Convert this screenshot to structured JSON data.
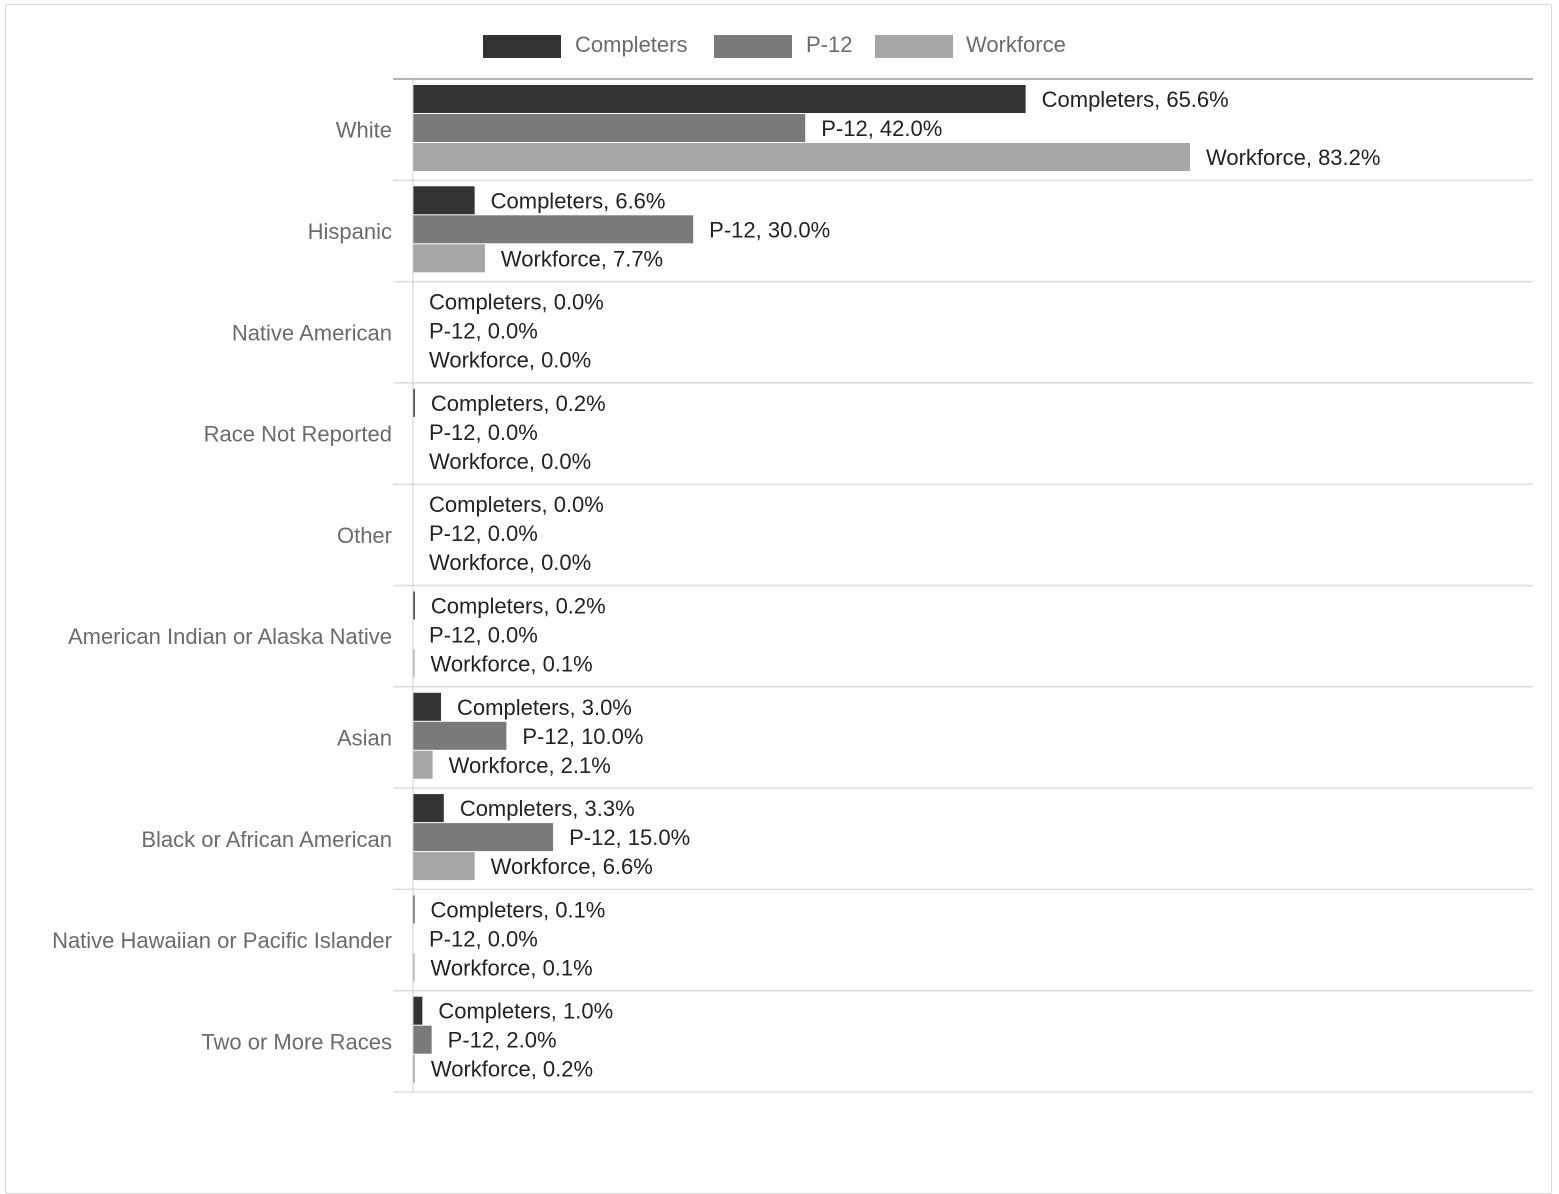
{
  "chart_data": {
    "type": "bar",
    "orientation": "horizontal",
    "categories": [
      "White",
      "Hispanic",
      "Native American",
      "Race Not Reported",
      "Other",
      "American Indian or Alaska Native",
      "Asian",
      "Black or African American",
      "Native Hawaiian or Pacific Islander",
      "Two or More Races"
    ],
    "series": [
      {
        "name": "Completers",
        "color": "#333333",
        "values": [
          65.6,
          6.6,
          0.0,
          0.2,
          0.0,
          0.2,
          3.0,
          3.3,
          0.1,
          1.0
        ],
        "labels": [
          "Completers, 65.6%",
          "Completers, 6.6%",
          "Completers, 0.0%",
          "Completers, 0.2%",
          "Completers, 0.0%",
          "Completers, 0.2%",
          "Completers, 3.0%",
          "Completers, 3.3%",
          "Completers, 0.1%",
          "Completers, 1.0%"
        ]
      },
      {
        "name": "P-12",
        "color": "#7a7a7a",
        "values": [
          42.0,
          30.0,
          0.0,
          0.0,
          0.0,
          0.0,
          10.0,
          15.0,
          0.0,
          2.0
        ],
        "labels": [
          "P-12, 42.0%",
          "P-12, 30.0%",
          "P-12, 0.0%",
          "P-12, 0.0%",
          "P-12, 0.0%",
          "P-12, 0.0%",
          "P-12, 10.0%",
          "P-12, 15.0%",
          "P-12, 0.0%",
          "P-12, 2.0%"
        ]
      },
      {
        "name": "Workforce",
        "color": "#a6a6a6",
        "values": [
          83.2,
          7.7,
          0.0,
          0.0,
          0.0,
          0.1,
          2.1,
          6.6,
          0.1,
          0.2
        ],
        "labels": [
          "Workforce, 83.2%",
          "Workforce, 7.7%",
          "Workforce, 0.0%",
          "Workforce, 0.0%",
          "Workforce, 0.0%",
          "Workforce, 0.1%",
          "Workforce, 2.1%",
          "Workforce, 6.6%",
          "Workforce, 0.1%",
          "Workforce, 0.2%"
        ]
      }
    ],
    "xlim": [
      0,
      100
    ],
    "grid": false,
    "legend": "top"
  }
}
